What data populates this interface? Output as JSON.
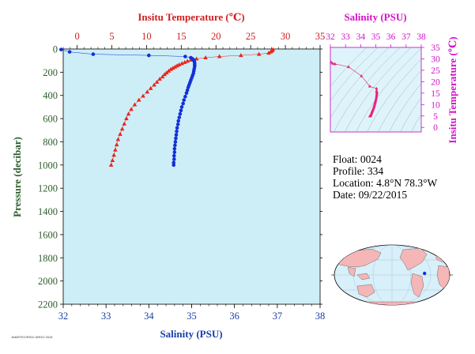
{
  "colors": {
    "plot_bg": "#cdeef7",
    "temperature": "#e8251c",
    "salinity": "#1230d8",
    "magenta": "#d412c9",
    "pressure_axis": "#2e5e2e",
    "map_ocean": "#d7f0fa",
    "map_land": "#f4b6b6"
  },
  "chart_data": [
    {
      "type": "scatter",
      "panel": "profile",
      "ylabel": "Pressure (decibar)",
      "ylim": [
        2200,
        0
      ],
      "yticks": [
        0,
        200,
        400,
        600,
        800,
        1000,
        1200,
        1400,
        1600,
        1800,
        2000,
        2200
      ],
      "top_axis": {
        "label": "Insitu Temperature (℃)",
        "range": [
          -2,
          35
        ],
        "ticks": [
          0,
          5,
          10,
          15,
          20,
          25,
          30,
          35
        ]
      },
      "bottom_axis": {
        "label": "Salinity (PSU)",
        "range": [
          32,
          38
        ],
        "ticks": [
          32,
          33,
          34,
          35,
          36,
          37,
          38
        ]
      },
      "series": [
        {
          "name": "Temperature",
          "marker": "triangle",
          "points": [
            [
              28.2,
              5
            ],
            [
              28.1,
              15
            ],
            [
              27.9,
              25
            ],
            [
              27.6,
              35
            ],
            [
              26.2,
              45
            ],
            [
              23.6,
              55
            ],
            [
              20.5,
              65
            ],
            [
              18.5,
              75
            ],
            [
              17.2,
              85
            ],
            [
              16.4,
              95
            ],
            [
              15.9,
              105
            ],
            [
              15.5,
              115
            ],
            [
              15.1,
              125
            ],
            [
              14.7,
              135
            ],
            [
              14.4,
              145
            ],
            [
              14.1,
              155
            ],
            [
              13.8,
              165
            ],
            [
              13.5,
              175
            ],
            [
              13.2,
              190
            ],
            [
              12.9,
              205
            ],
            [
              12.6,
              220
            ],
            [
              12.3,
              240
            ],
            [
              11.9,
              260
            ],
            [
              11.5,
              285
            ],
            [
              11.1,
              310
            ],
            [
              10.6,
              340
            ],
            [
              10.1,
              370
            ],
            [
              9.5,
              405
            ],
            [
              8.9,
              440
            ],
            [
              8.3,
              480
            ],
            [
              7.8,
              520
            ],
            [
              7.4,
              560
            ],
            [
              7.1,
              600
            ],
            [
              6.8,
              645
            ],
            [
              6.5,
              690
            ],
            [
              6.2,
              735
            ],
            [
              5.9,
              780
            ],
            [
              5.7,
              825
            ],
            [
              5.5,
              870
            ],
            [
              5.3,
              915
            ],
            [
              5.1,
              960
            ],
            [
              4.9,
              1000
            ]
          ]
        },
        {
          "name": "Salinity",
          "marker": "circle",
          "points": [
            [
              31.95,
              5
            ],
            [
              32.15,
              25
            ],
            [
              32.7,
              45
            ],
            [
              34.0,
              55
            ],
            [
              34.85,
              65
            ],
            [
              34.98,
              75
            ],
            [
              35.02,
              85
            ],
            [
              35.05,
              95
            ],
            [
              35.06,
              105
            ],
            [
              35.07,
              120
            ],
            [
              35.07,
              135
            ],
            [
              35.07,
              150
            ],
            [
              35.06,
              170
            ],
            [
              35.05,
              190
            ],
            [
              35.04,
              210
            ],
            [
              35.02,
              230
            ],
            [
              35.0,
              250
            ],
            [
              34.98,
              270
            ],
            [
              34.96,
              290
            ],
            [
              34.94,
              310
            ],
            [
              34.92,
              330
            ],
            [
              34.9,
              355
            ],
            [
              34.88,
              380
            ],
            [
              34.85,
              410
            ],
            [
              34.82,
              440
            ],
            [
              34.8,
              470
            ],
            [
              34.77,
              500
            ],
            [
              34.75,
              530
            ],
            [
              34.73,
              560
            ],
            [
              34.71,
              590
            ],
            [
              34.69,
              620
            ],
            [
              34.68,
              650
            ],
            [
              34.66,
              680
            ],
            [
              34.65,
              710
            ],
            [
              34.64,
              740
            ],
            [
              34.63,
              770
            ],
            [
              34.62,
              800
            ],
            [
              34.61,
              830
            ],
            [
              34.6,
              860
            ],
            [
              34.6,
              890
            ],
            [
              34.59,
              920
            ],
            [
              34.59,
              950
            ],
            [
              34.58,
              980
            ],
            [
              34.58,
              1000
            ]
          ]
        }
      ]
    },
    {
      "type": "scatter",
      "panel": "ts_diagram",
      "xlabel": "Salinity (PSU)",
      "ylabel": "Insitu Temperature (℃)",
      "xlim": [
        32,
        38
      ],
      "ylim": [
        -2,
        35
      ],
      "xticks": [
        32,
        33,
        34,
        35,
        36,
        37,
        38
      ],
      "yticks": [
        0,
        5,
        10,
        15,
        20,
        25,
        30,
        35
      ],
      "points": [
        [
          32.05,
          28.5
        ],
        [
          32.15,
          28.0
        ],
        [
          32.3,
          27.8
        ],
        [
          33.2,
          26.5
        ],
        [
          34.05,
          22.5
        ],
        [
          34.6,
          18.0
        ],
        [
          35.05,
          17.0
        ],
        [
          35.05,
          16.0
        ],
        [
          35.07,
          15.5
        ],
        [
          35.07,
          15.0
        ],
        [
          35.06,
          14.4
        ],
        [
          35.05,
          13.8
        ],
        [
          35.04,
          13.2
        ],
        [
          35.02,
          12.6
        ],
        [
          35.0,
          12.0
        ],
        [
          34.98,
          11.5
        ],
        [
          34.96,
          11.0
        ],
        [
          34.94,
          10.5
        ],
        [
          34.92,
          10.0
        ],
        [
          34.9,
          9.5
        ],
        [
          34.88,
          9.0
        ],
        [
          34.85,
          8.5
        ],
        [
          34.82,
          8.0
        ],
        [
          34.8,
          7.6
        ],
        [
          34.77,
          7.2
        ],
        [
          34.75,
          6.8
        ],
        [
          34.73,
          6.4
        ],
        [
          34.7,
          6.0
        ],
        [
          34.68,
          5.6
        ],
        [
          34.66,
          5.2
        ],
        [
          34.63,
          5.0
        ],
        [
          34.6,
          4.9
        ]
      ]
    }
  ],
  "info": {
    "float": "Float:  0024",
    "profile": "Profile:  334",
    "location": "Location:  4.8°N  78.3°W",
    "date": "Date:  09/22/2015"
  },
  "map": {
    "float_position": {
      "lat": 4.8,
      "lon": -78.3
    }
  },
  "credit": "JAMSTEC/RIGC ARGO 2015"
}
